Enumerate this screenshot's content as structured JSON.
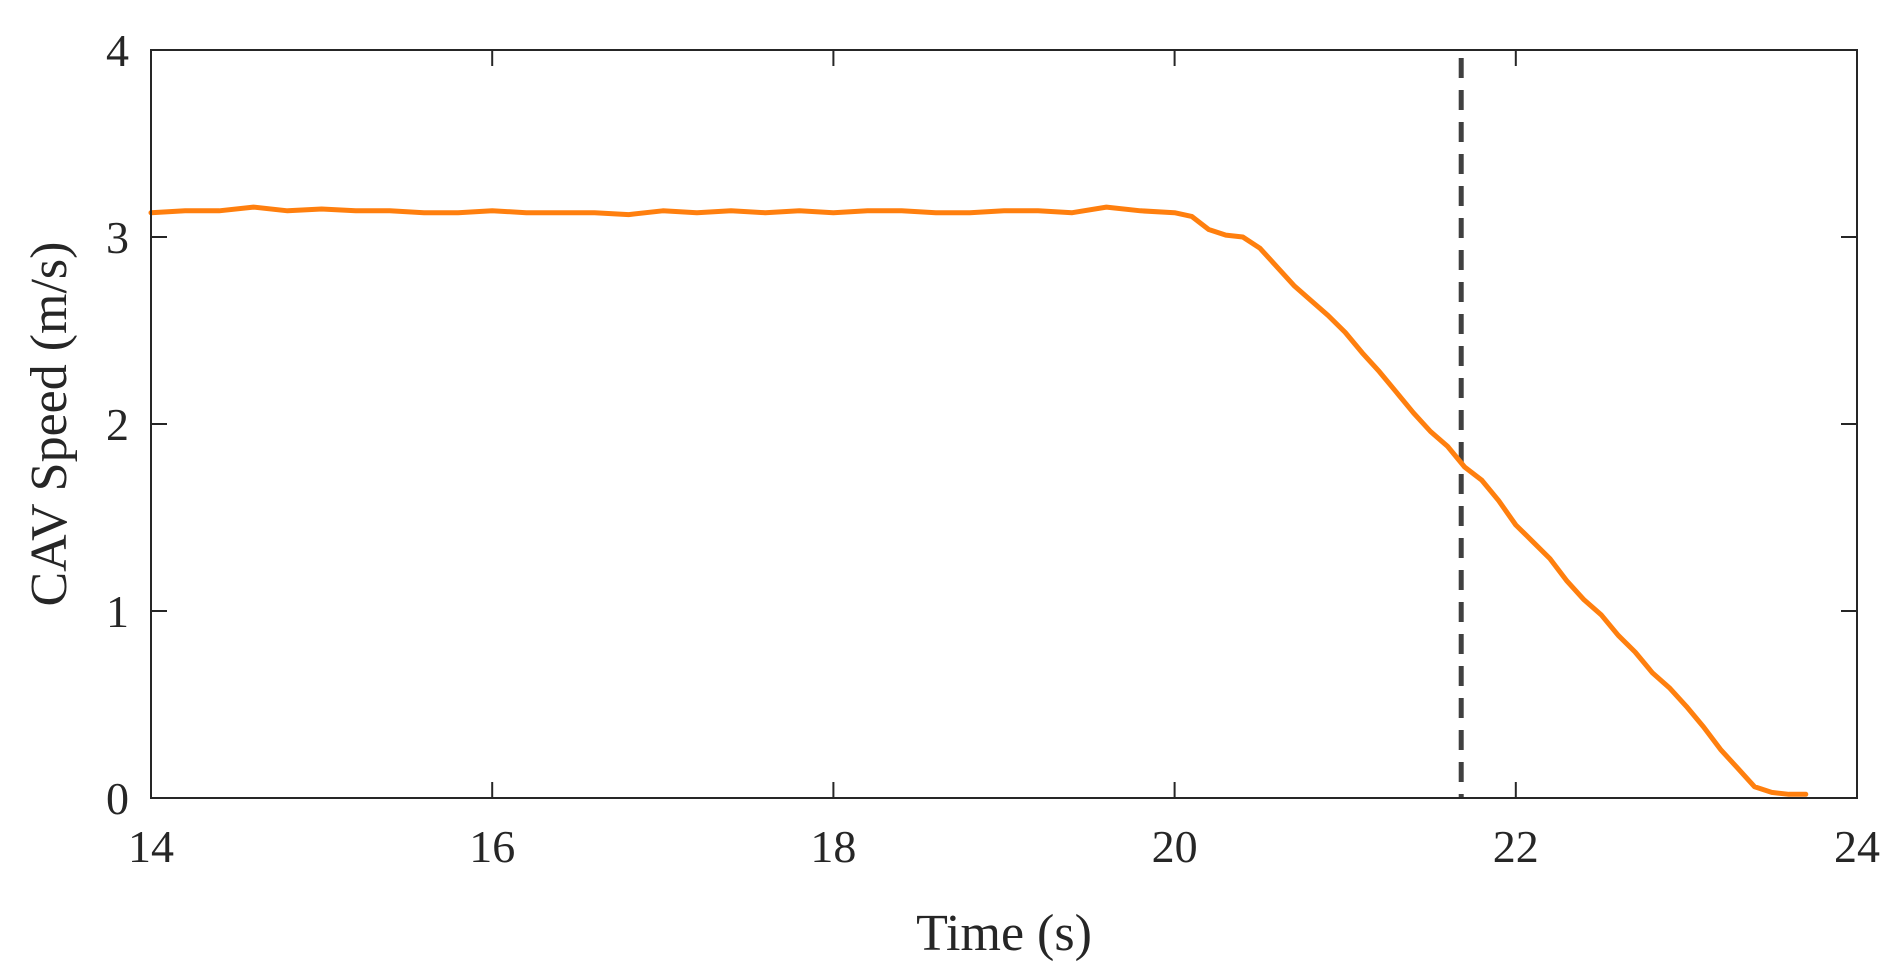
{
  "chart_data": {
    "type": "line",
    "title": "",
    "xlabel": "Time (s)",
    "ylabel": "CAV Speed (m/s)",
    "xlim": [
      14,
      24
    ],
    "ylim": [
      0,
      4
    ],
    "xticks": [
      14,
      16,
      18,
      20,
      22,
      24
    ],
    "yticks": [
      0,
      1,
      2,
      3,
      4
    ],
    "grid": false,
    "legend": "none",
    "series": [
      {
        "color": "#ff7f0e",
        "style": "solid",
        "x": [
          14.0,
          14.2,
          14.4,
          14.6,
          14.8,
          15.0,
          15.2,
          15.4,
          15.6,
          15.8,
          16.0,
          16.2,
          16.4,
          16.6,
          16.8,
          17.0,
          17.2,
          17.4,
          17.6,
          17.8,
          18.0,
          18.2,
          18.4,
          18.6,
          18.8,
          19.0,
          19.2,
          19.4,
          19.6,
          19.8,
          20.0,
          20.1,
          20.2,
          20.3,
          20.4,
          20.5,
          20.6,
          20.7,
          20.8,
          20.9,
          21.0,
          21.1,
          21.2,
          21.3,
          21.4,
          21.5,
          21.6,
          21.7,
          21.8,
          21.9,
          22.0,
          22.1,
          22.2,
          22.3,
          22.4,
          22.5,
          22.6,
          22.7,
          22.8,
          22.9,
          23.0,
          23.1,
          23.2,
          23.3,
          23.4,
          23.5,
          23.6,
          23.7
        ],
        "y": [
          3.13,
          3.14,
          3.14,
          3.16,
          3.14,
          3.15,
          3.14,
          3.14,
          3.13,
          3.13,
          3.14,
          3.13,
          3.13,
          3.13,
          3.12,
          3.14,
          3.13,
          3.14,
          3.13,
          3.14,
          3.13,
          3.14,
          3.14,
          3.13,
          3.13,
          3.14,
          3.14,
          3.13,
          3.16,
          3.14,
          3.13,
          3.11,
          3.04,
          3.01,
          3.0,
          2.94,
          2.84,
          2.74,
          2.66,
          2.58,
          2.49,
          2.38,
          2.28,
          2.17,
          2.06,
          1.96,
          1.88,
          1.77,
          1.7,
          1.59,
          1.46,
          1.37,
          1.28,
          1.16,
          1.06,
          0.98,
          0.87,
          0.78,
          0.67,
          0.59,
          0.49,
          0.38,
          0.26,
          0.16,
          0.06,
          0.03,
          0.02,
          0.02
        ]
      }
    ],
    "annotations": [
      {
        "type": "vertical-line",
        "x": 21.68,
        "color": "#404040",
        "style": "dashed"
      }
    ]
  }
}
